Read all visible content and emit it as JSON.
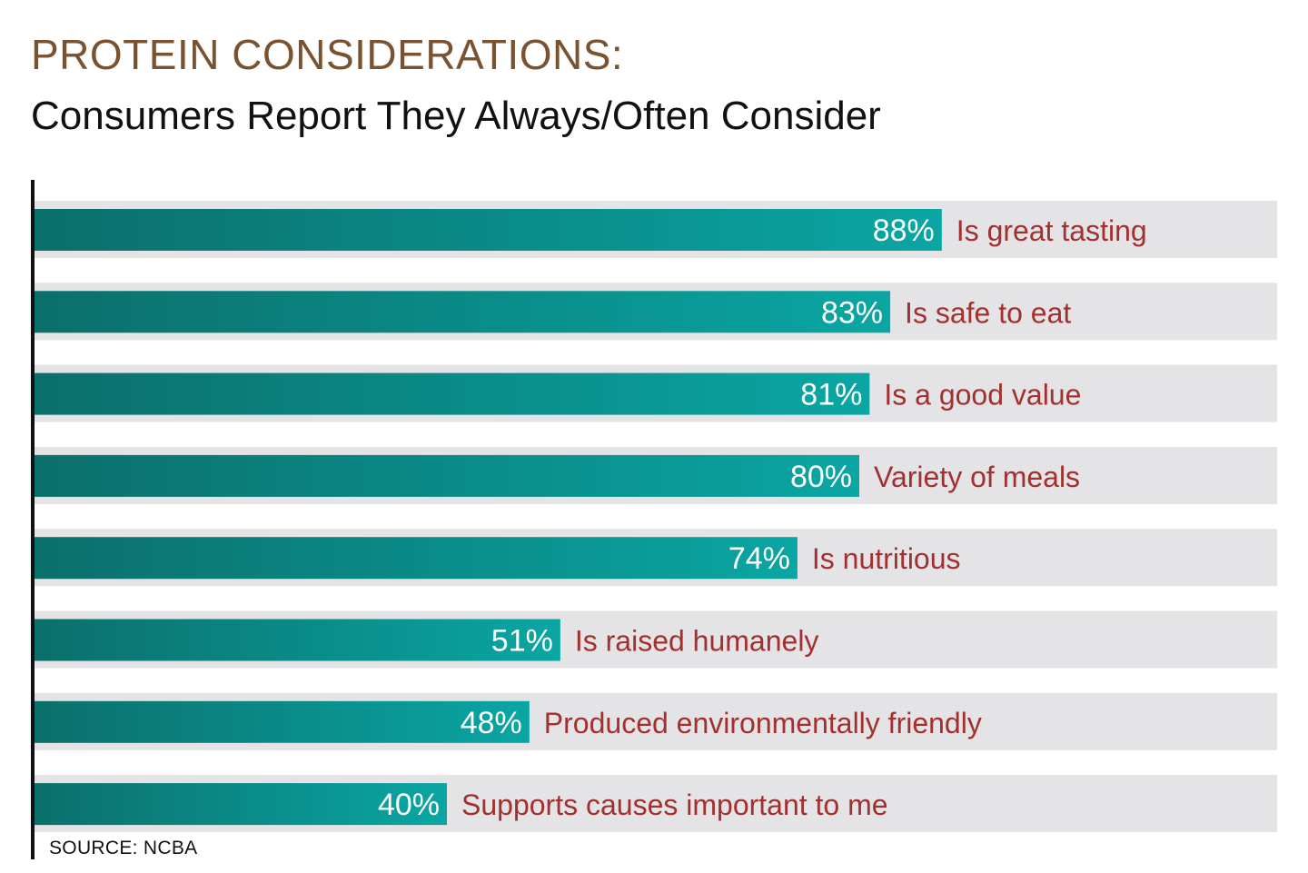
{
  "header": {
    "title": "PROTEIN CONSIDERATIONS:",
    "subtitle": "Consumers Report They Always/Often Consider"
  },
  "footer": {
    "source": "SOURCE: NCBA"
  },
  "chart_data": {
    "type": "bar",
    "orientation": "horizontal",
    "title": "PROTEIN CONSIDERATIONS:",
    "subtitle": "Consumers Report They Always/Often Consider",
    "categories": [
      "Is great tasting",
      "Is safe to eat",
      "Is a good value",
      "Variety of meals",
      "Is nutritious",
      "Is raised humanely",
      "Produced environmentally friendly",
      "Supports causes important to me"
    ],
    "values": [
      88,
      83,
      81,
      80,
      74,
      51,
      48,
      40
    ],
    "value_labels": [
      "88%",
      "83%",
      "81%",
      "80%",
      "74%",
      "51%",
      "48%",
      "40%"
    ],
    "unit": "%",
    "xlim": [
      0,
      100
    ],
    "grid": false,
    "legend": "none",
    "colors": {
      "bar_dark": "#0b6f6b",
      "bar_light": "#0aa6a3",
      "track": "#e4e4e6",
      "category_label": "#a3302f",
      "value_label": "#ffffff",
      "axis": "#111111"
    },
    "source": "SOURCE: NCBA"
  }
}
